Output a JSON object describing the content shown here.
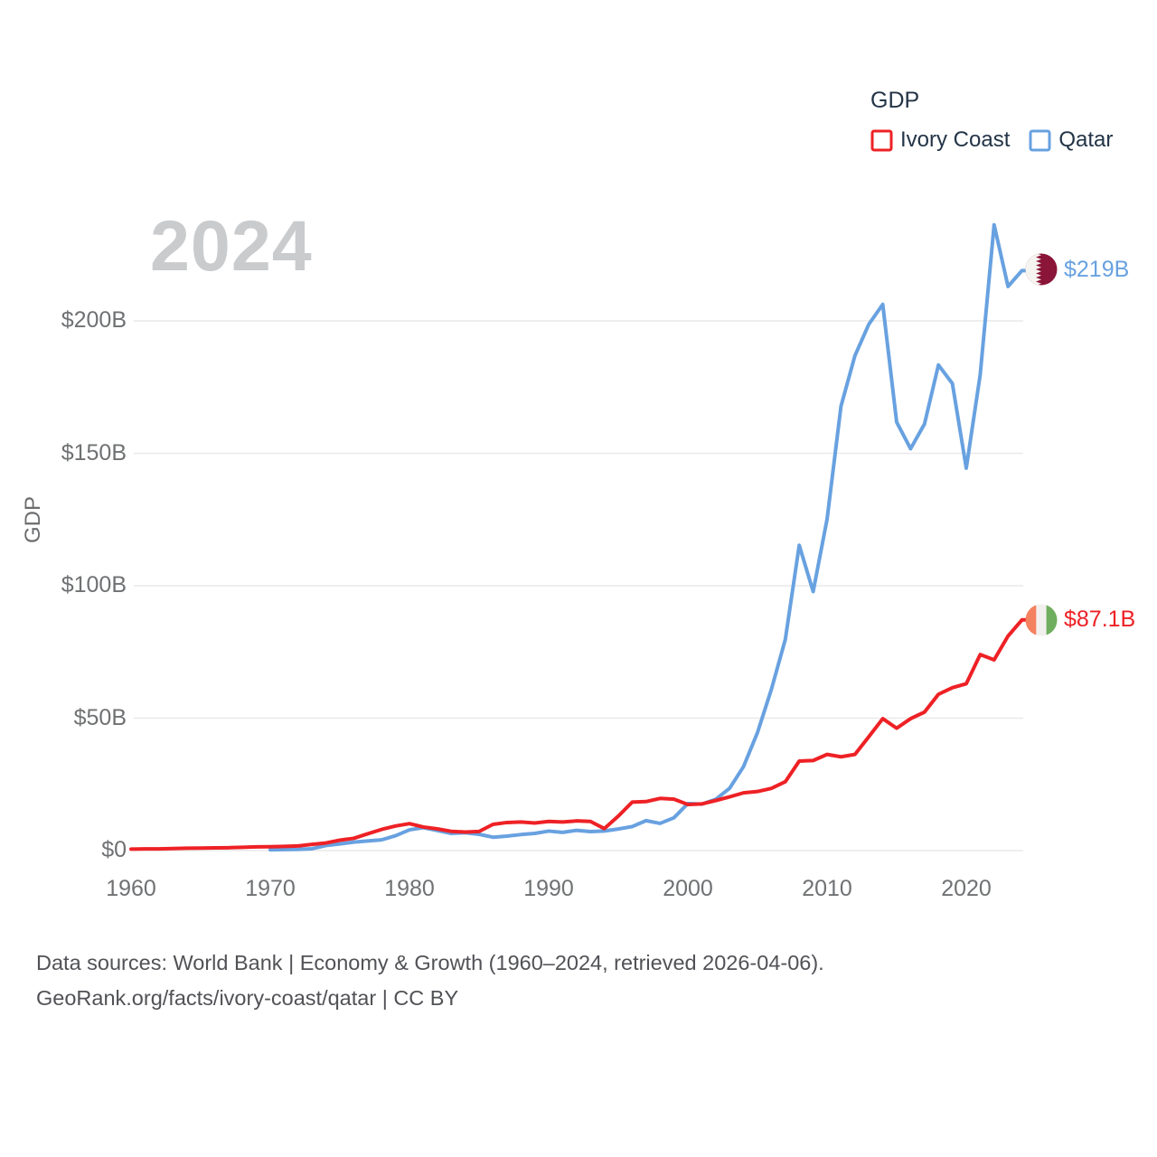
{
  "legend": {
    "title": "GDP",
    "items": [
      {
        "label": "Ivory Coast",
        "color": "#ee2125"
      },
      {
        "label": "Qatar",
        "color": "#68a1e0"
      }
    ]
  },
  "watermark": "2024",
  "y_axis": {
    "title": "GDP"
  },
  "end_labels": {
    "qatar": "$219B",
    "ivory_coast": "$87.1B"
  },
  "footer": {
    "line1": "Data sources: World Bank | Economy & Growth (1960–2024, retrieved 2026-04-06).",
    "line2": "GeoRank.org/facts/ivory-coast/qatar | CC BY"
  },
  "flags": {
    "qatar": {
      "maroon": "#8a1538",
      "white": "#f6f4f0"
    },
    "ivory_coast": {
      "orange": "#f4815f",
      "white": "#f2f0ee",
      "green": "#6fae5e"
    }
  },
  "colors": {
    "gridline": "#e9e9e9",
    "axis_text": "#6f7173",
    "watermark": "#c9cbcd",
    "legend_text": "#233447",
    "footer_text": "#515256"
  },
  "chart_data": {
    "type": "line",
    "title": "GDP",
    "ylabel": "GDP",
    "xlim": [
      1960,
      2024
    ],
    "ylim": [
      0,
      240
    ],
    "grid": "horizontal",
    "legend_position": "top-right",
    "y_ticks": [
      {
        "label": "$0",
        "value": 0
      },
      {
        "label": "$50B",
        "value": 50
      },
      {
        "label": "$100B",
        "value": 100
      },
      {
        "label": "$150B",
        "value": 150
      },
      {
        "label": "$200B",
        "value": 200
      }
    ],
    "x_ticks": [
      {
        "label": "1960",
        "value": 1960
      },
      {
        "label": "1970",
        "value": 1970
      },
      {
        "label": "1980",
        "value": 1980
      },
      {
        "label": "1990",
        "value": 1990
      },
      {
        "label": "2000",
        "value": 2000
      },
      {
        "label": "2010",
        "value": 2010
      },
      {
        "label": "2020",
        "value": 2020
      }
    ],
    "series": [
      {
        "name": "Ivory Coast",
        "color": "#ee2125",
        "start_year": 1960,
        "end_value_label": "$87.1B",
        "values": [
          0.55,
          0.62,
          0.64,
          0.75,
          0.89,
          0.92,
          1.01,
          1.08,
          1.23,
          1.39,
          1.46,
          1.58,
          1.76,
          2.33,
          2.87,
          3.93,
          4.63,
          6.33,
          7.98,
          9.27,
          10.18,
          8.9,
          8.2,
          7.25,
          7.0,
          7.2,
          9.9,
          10.6,
          10.8,
          10.4,
          11.0,
          10.8,
          11.2,
          11.0,
          8.3,
          13.0,
          18.3,
          18.5,
          19.7,
          19.4,
          17.4,
          17.6,
          18.9,
          20.3,
          21.8,
          22.3,
          23.5,
          26.0,
          33.8,
          34.0,
          36.3,
          35.4,
          36.3,
          43.0,
          49.8,
          46.2,
          49.8,
          52.3,
          59.0,
          61.5,
          63.0,
          74.0,
          72.0,
          81.0,
          87.1
        ]
      },
      {
        "name": "Qatar",
        "color": "#68a1e0",
        "start_year": 1970,
        "end_value_label": "$219B",
        "values": [
          0.3,
          0.39,
          0.47,
          0.69,
          1.92,
          2.51,
          3.2,
          3.62,
          4.05,
          5.6,
          7.83,
          8.66,
          7.59,
          6.47,
          6.73,
          6.15,
          5.05,
          5.45,
          6.04,
          6.49,
          7.36,
          6.88,
          7.65,
          7.16,
          7.37,
          8.14,
          9.06,
          11.3,
          10.26,
          12.39,
          17.76,
          17.54,
          19.36,
          23.53,
          31.73,
          44.53,
          60.88,
          79.71,
          115.27,
          97.8,
          125.12,
          167.78,
          186.83,
          198.73,
          206.22,
          161.74,
          151.73,
          161.1,
          183.33,
          176.37,
          144.41,
          179.68,
          236.26,
          213.0,
          219.0
        ]
      }
    ]
  }
}
